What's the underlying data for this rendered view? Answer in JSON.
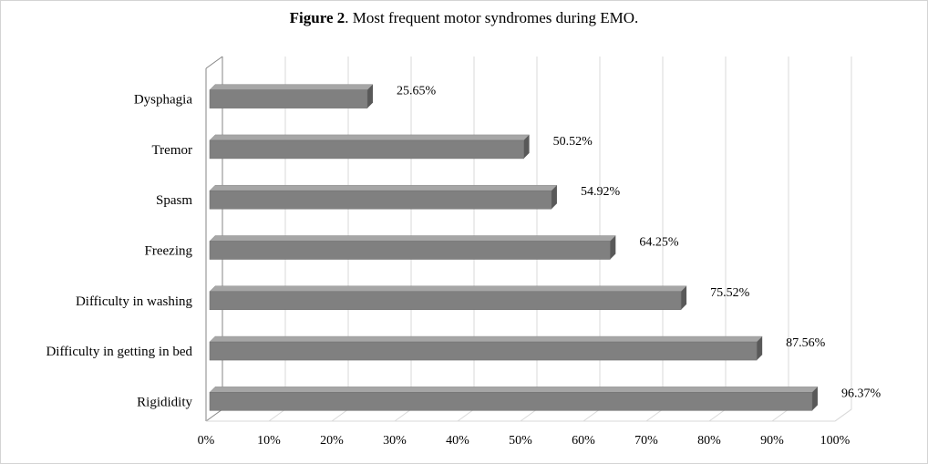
{
  "title": {
    "prefix": "Figure 2",
    "text": ". Most frequent motor syndromes during EMO."
  },
  "chart_data": {
    "type": "bar",
    "orientation": "horizontal",
    "three_d": true,
    "categories": [
      "Dysphagia",
      "Tremor",
      "Spasm",
      "Freezing",
      "Difficulty in washing",
      "Difficulty in getting in bed",
      "Rigididity"
    ],
    "values": [
      25.65,
      50.52,
      54.92,
      64.25,
      75.52,
      87.56,
      96.37
    ],
    "value_labels": [
      "25.65%",
      "50.52%",
      "54.92%",
      "64.25%",
      "75.52%",
      "87.56%",
      "96.37%"
    ],
    "xlim": [
      0,
      100
    ],
    "x_ticks": [
      "0%",
      "10%",
      "20%",
      "30%",
      "40%",
      "50%",
      "60%",
      "70%",
      "80%",
      "90%",
      "100%"
    ],
    "grid": true,
    "legend": "none",
    "colors": {
      "bar_front": "#808080",
      "bar_top": "#a6a6a6",
      "bar_side": "#595959",
      "grid": "#d9d9d9",
      "axis": "#868686"
    }
  }
}
